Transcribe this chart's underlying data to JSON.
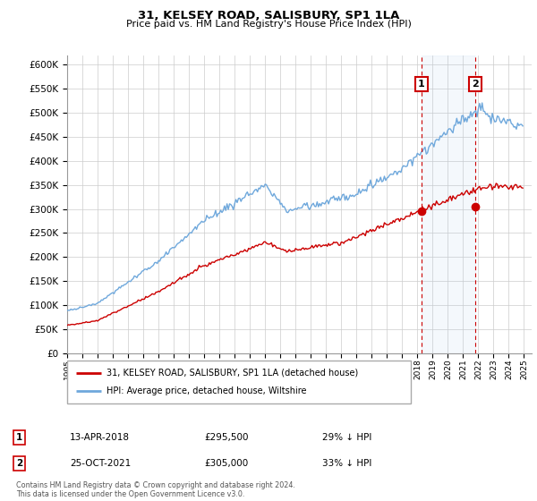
{
  "title": "31, KELSEY ROAD, SALISBURY, SP1 1LA",
  "subtitle": "Price paid vs. HM Land Registry's House Price Index (HPI)",
  "ylim": [
    0,
    620000
  ],
  "yticks": [
    0,
    50000,
    100000,
    150000,
    200000,
    250000,
    300000,
    350000,
    400000,
    450000,
    500000,
    550000,
    600000
  ],
  "background_color": "#ffffff",
  "grid_color": "#cccccc",
  "hpi_color": "#6fa8dc",
  "price_color": "#cc0000",
  "sale1_date": 2018.27,
  "sale1_price": 295500,
  "sale1_label": "1",
  "sale2_date": 2021.8,
  "sale2_price": 305000,
  "sale2_label": "2",
  "legend_line1": "31, KELSEY ROAD, SALISBURY, SP1 1LA (detached house)",
  "legend_line2": "HPI: Average price, detached house, Wiltshire",
  "ann1_date": "13-APR-2018",
  "ann1_price": "£295,500",
  "ann1_hpi": "29% ↓ HPI",
  "ann2_date": "25-OCT-2021",
  "ann2_price": "£305,000",
  "ann2_hpi": "33% ↓ HPI",
  "footnote": "Contains HM Land Registry data © Crown copyright and database right 2024.\nThis data is licensed under the Open Government Licence v3.0.",
  "xlim_min": 1995.0,
  "xlim_max": 2025.5
}
